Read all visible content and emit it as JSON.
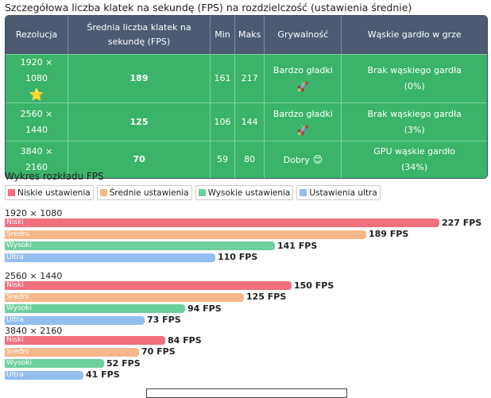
{
  "title": "Szczegółowa liczba klatek na sekundę (FPS) na rozdzielczość (ustawienia średnie)",
  "table": {
    "headers": [
      "Rezolucja",
      "Średnia liczba klatek na sekundę (FPS)",
      "Min",
      "Maks",
      "Grywalność",
      "Wąskie gardło w grze"
    ],
    "rows": [
      {
        "resolution": "1920 × 1080",
        "badge": "⭐",
        "fps": "189",
        "min": "161",
        "max": "217",
        "playability": "Bardzo gładki",
        "play_emoji": "🚀",
        "bottleneck_line1": "Brak wąskiego gardła",
        "bottleneck_line2": "(0%)"
      },
      {
        "resolution": "2560 × 1440",
        "fps": "125",
        "min": "106",
        "max": "144",
        "playability": "Bardzo gładki",
        "play_emoji": "🚀",
        "bottleneck_line1": "Brak wąskiego gardła",
        "bottleneck_line2": "(3%)"
      },
      {
        "resolution": "3840 × 2160",
        "fps": "70",
        "min": "59",
        "max": "80",
        "playability": "Dobry",
        "play_emoji": "😊",
        "bottleneck_line1": "GPU wąskie gardło",
        "bottleneck_line2": "(34%)"
      }
    ]
  },
  "chart_data": {
    "type": "bar",
    "title": "Wykres rozkładu FPS",
    "legend": [
      "Niskie ustawienia",
      "Średnie ustawienia",
      "Wysokie ustawienia",
      "Ustawienia ultra"
    ],
    "series_short": [
      "Niski",
      "Średni",
      "Wysoki",
      "Ultra"
    ],
    "colors": [
      "#f07080",
      "#f5b78a",
      "#6ecf9e",
      "#94bdf0"
    ],
    "categories": [
      "1920 × 1080",
      "2560 × 1440",
      "3840 × 2160"
    ],
    "values": [
      [
        227,
        189,
        141,
        110
      ],
      [
        150,
        125,
        94,
        73
      ],
      [
        84,
        70,
        52,
        41
      ]
    ],
    "unit": "FPS",
    "xlim": [
      0,
      227
    ]
  }
}
